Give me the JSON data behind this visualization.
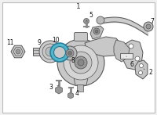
{
  "title": "1",
  "bg_color": "#f0f0f0",
  "border_color": "#bbbbbb",
  "lc": "#555555",
  "part_fill": "#c8c8c8",
  "part_dark": "#999999",
  "part_light": "#e0e0e0",
  "highlight": "#4ab5cc",
  "highlight_edge": "#1a7a99",
  "white": "#ffffff",
  "label_color": "#222222",
  "figsize": [
    2.0,
    1.47
  ],
  "dpi": 100,
  "xlim": [
    0,
    200
  ],
  "ylim": [
    0,
    147
  ]
}
